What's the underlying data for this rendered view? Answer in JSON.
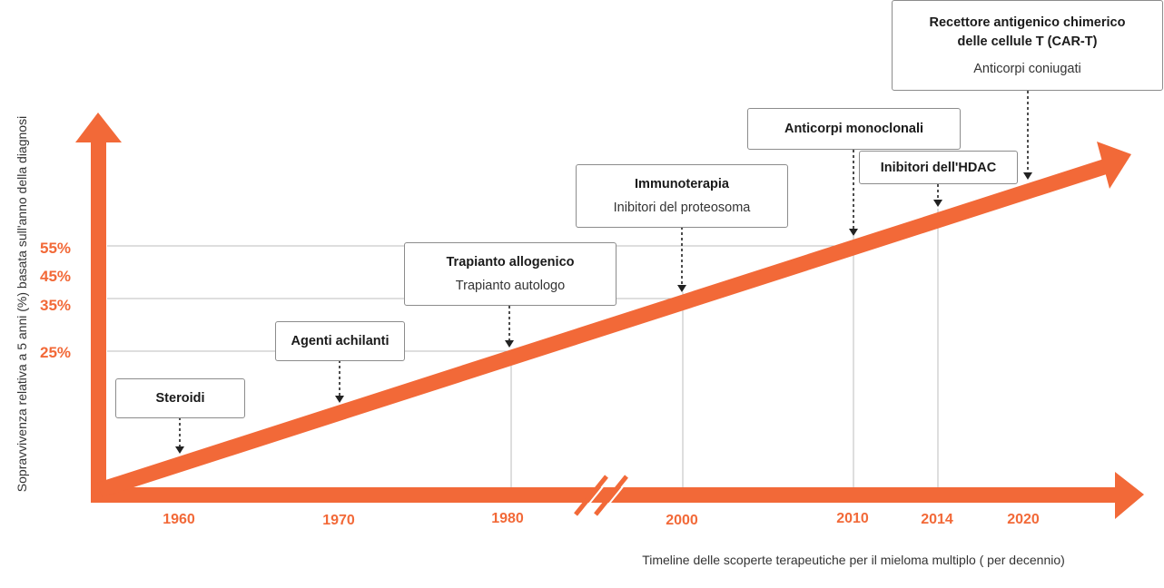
{
  "colors": {
    "accent": "#f26938",
    "box_border": "#8c8c8c",
    "grid": "#bdbdbd"
  },
  "y_axis": {
    "title": "Sopravvivenza relativa a 5 anni (%) basata sull'anno della diagnosi",
    "ticks": [
      "55%",
      "45%",
      "35%",
      "25%"
    ]
  },
  "x_axis": {
    "title": "Timeline delle scoperte terapeutiche per il mieloma multiplo ( per decennio)",
    "ticks": [
      "1960",
      "1970",
      "1980",
      "2000",
      "2010",
      "2014",
      "2020"
    ]
  },
  "milestones": [
    {
      "title": "Steroidi",
      "subtitle": ""
    },
    {
      "title": "Agenti achilanti",
      "subtitle": ""
    },
    {
      "title": "Trapianto allogenico",
      "subtitle": "Trapianto autologo"
    },
    {
      "title": "Immunoterapia",
      "subtitle": "Inibitori del proteosoma"
    },
    {
      "title": "Anticorpi monoclonali",
      "subtitle": ""
    },
    {
      "title": "Inibitori dell'HDAC",
      "subtitle": ""
    },
    {
      "title": "Recettore antigenico chimerico delle cellule T (CAR-T)",
      "subtitle": "Anticorpi coniugati"
    }
  ]
}
